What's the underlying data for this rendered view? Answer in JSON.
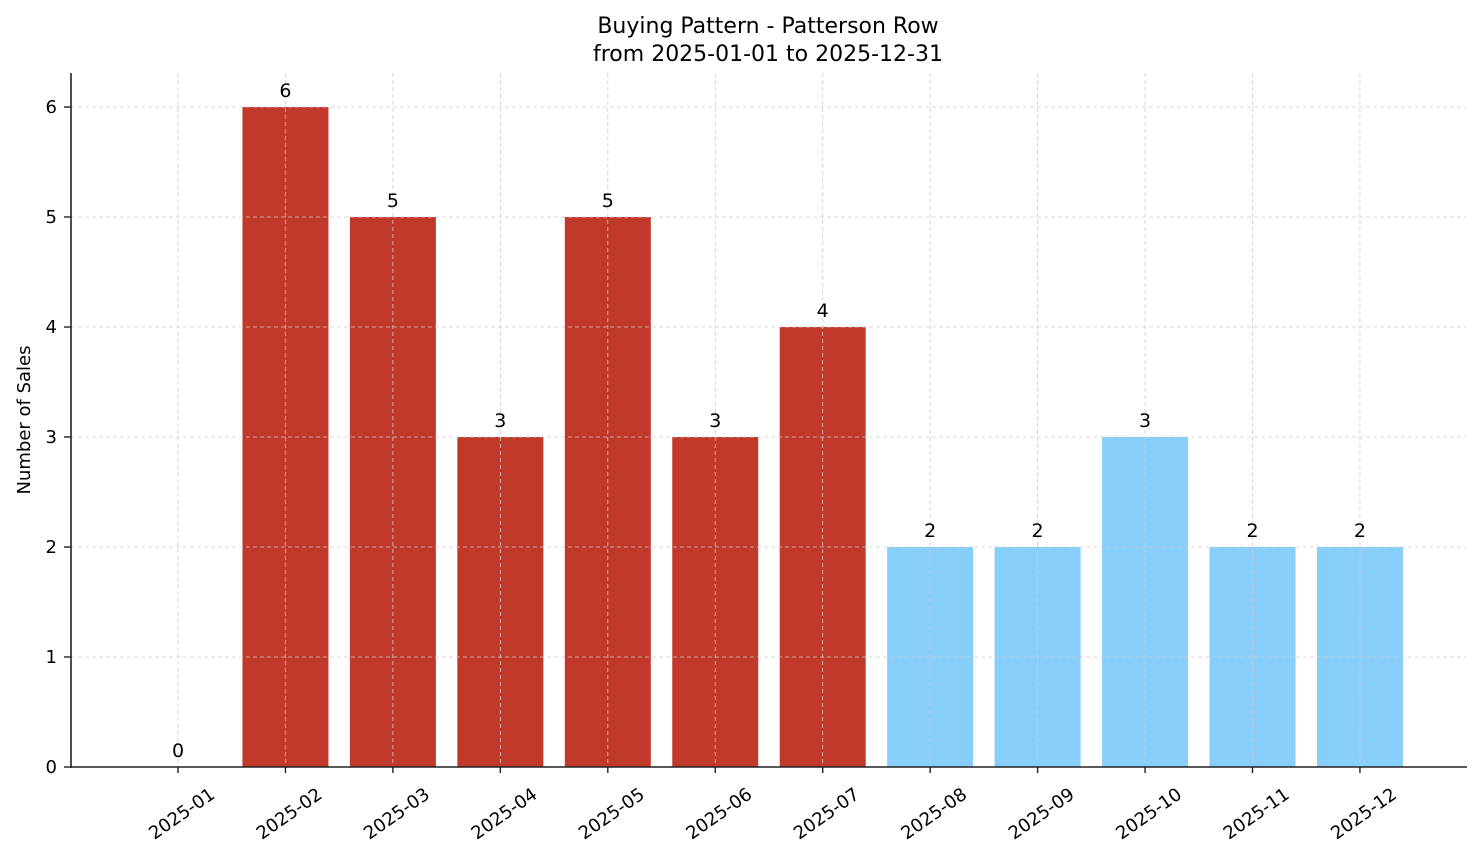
{
  "chart_data": {
    "type": "bar",
    "title": "Buying Pattern - Patterson Row",
    "subtitle": "from 2025-01-01 to 2025-12-31",
    "xlabel": "",
    "ylabel": "Number of Sales",
    "categories": [
      "2025-01",
      "2025-02",
      "2025-03",
      "2025-04",
      "2025-05",
      "2025-06",
      "2025-07",
      "2025-08",
      "2025-09",
      "2025-10",
      "2025-11",
      "2025-12"
    ],
    "values": [
      0,
      6,
      5,
      3,
      5,
      3,
      4,
      2,
      2,
      3,
      2,
      2
    ],
    "bar_colors": [
      "#c0392b",
      "#c0392b",
      "#c0392b",
      "#c0392b",
      "#c0392b",
      "#c0392b",
      "#c0392b",
      "#87cefa",
      "#87cefa",
      "#87cefa",
      "#87cefa",
      "#87cefa"
    ],
    "yticks": [
      0,
      1,
      2,
      3,
      4,
      5,
      6
    ],
    "ylim": [
      0,
      6.3
    ],
    "grid": true,
    "legend": null,
    "data_labels": true,
    "xtick_rotation": 35
  }
}
